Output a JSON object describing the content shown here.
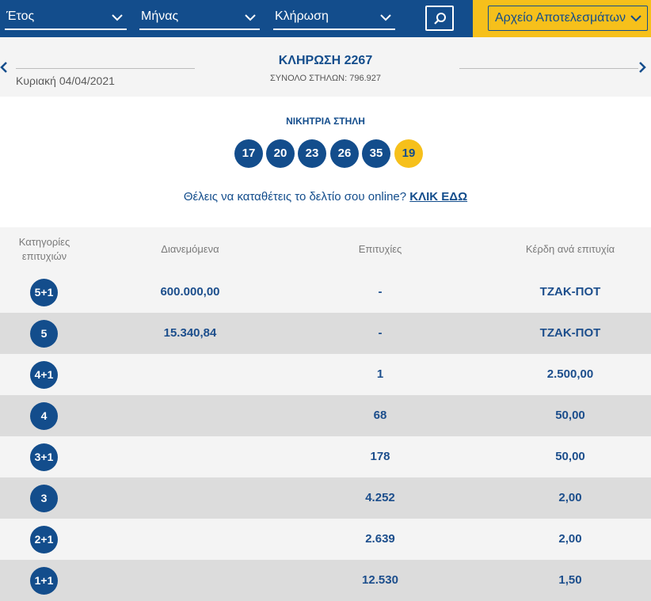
{
  "filters": {
    "year_label": "Έτος",
    "month_label": "Μήνας",
    "draw_label": "Κλήρωση",
    "archive_label": "Αρχείο Αποτελεσμάτων"
  },
  "icons": {
    "search": "search-icon",
    "chevron": "chevron-down-icon",
    "prev": "chevron-left-icon",
    "next": "chevron-right-icon"
  },
  "colors": {
    "primary": "#134d8c",
    "accent": "#f6c01b",
    "row_light": "#f4f4f4",
    "row_dark": "#dcdcdc"
  },
  "draw": {
    "date": "Κυριακή 04/04/2021",
    "title": "ΚΛΗΡΩΣΗ 2267",
    "total_columns": "ΣΥΝΟΛΟ ΣΤΗΛΩΝ: 796.927"
  },
  "winning": {
    "title": "ΝΙΚΗΤΡΙΑ ΣΤΗΛΗ",
    "numbers": [
      "17",
      "20",
      "23",
      "26",
      "35"
    ],
    "joker": "19"
  },
  "online": {
    "text": "Θέλεις να καταθέτεις το δελτίο σου online?",
    "link": "ΚΛΙΚ ΕΔΩ"
  },
  "table": {
    "headers": {
      "categories_line1": "Κατηγορίες",
      "categories_line2": "επιτυχιών",
      "distributed": "Διανεμόμενα",
      "winners": "Επιτυχίες",
      "prize": "Κέρδη ανά επιτυχία"
    },
    "rows": [
      {
        "category": "5+1",
        "distributed": "600.000,00",
        "winners": "-",
        "prize": "ΤΖΑΚ-ΠΟΤ"
      },
      {
        "category": "5",
        "distributed": "15.340,84",
        "winners": "-",
        "prize": "ΤΖΑΚ-ΠΟΤ"
      },
      {
        "category": "4+1",
        "distributed": "",
        "winners": "1",
        "prize": "2.500,00"
      },
      {
        "category": "4",
        "distributed": "",
        "winners": "68",
        "prize": "50,00"
      },
      {
        "category": "3+1",
        "distributed": "",
        "winners": "178",
        "prize": "50,00"
      },
      {
        "category": "3",
        "distributed": "",
        "winners": "4.252",
        "prize": "2,00"
      },
      {
        "category": "2+1",
        "distributed": "",
        "winners": "2.639",
        "prize": "2,00"
      },
      {
        "category": "1+1",
        "distributed": "",
        "winners": "12.530",
        "prize": "1,50"
      }
    ]
  }
}
